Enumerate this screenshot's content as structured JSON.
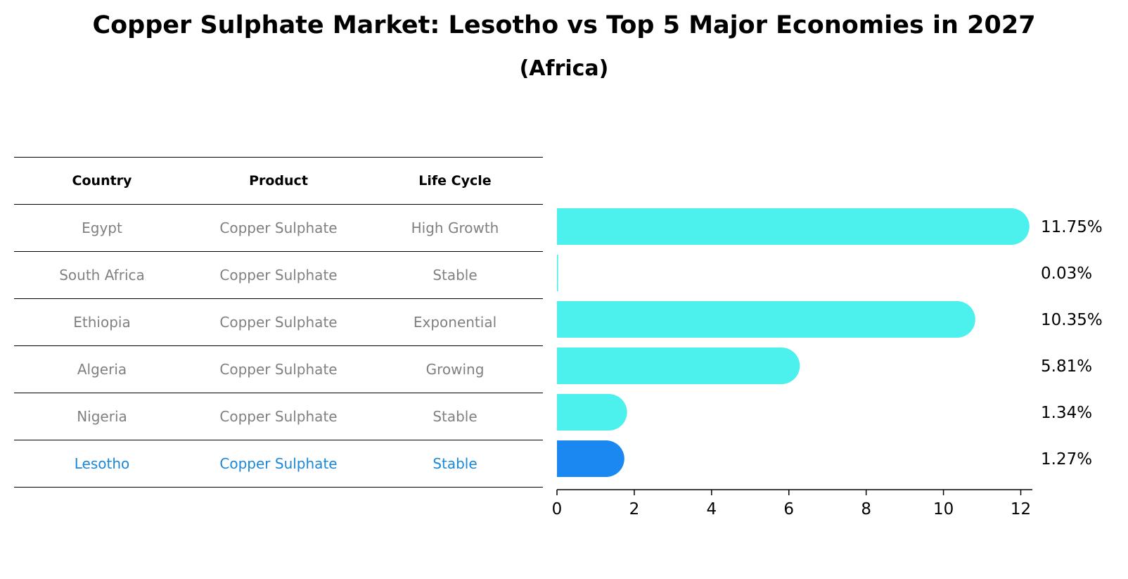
{
  "title": "Copper Sulphate Market: Lesotho vs Top 5 Major Economies in 2027",
  "subtitle": "(Africa)",
  "colors": {
    "bar": "#4cf0ec",
    "highlight": "#1a88f0",
    "text_muted": "#808080",
    "highlight_text": "#1a88d8"
  },
  "table": {
    "headers": [
      "Country",
      "Product",
      "Life Cycle"
    ],
    "rows": [
      {
        "country": "Egypt",
        "product": "Copper Sulphate",
        "life_cycle": "High Growth",
        "highlight": false
      },
      {
        "country": "South Africa",
        "product": "Copper Sulphate",
        "life_cycle": "Stable",
        "highlight": false
      },
      {
        "country": "Ethiopia",
        "product": "Copper Sulphate",
        "life_cycle": "Exponential",
        "highlight": false
      },
      {
        "country": "Algeria",
        "product": "Copper Sulphate",
        "life_cycle": "Growing",
        "highlight": false
      },
      {
        "country": "Nigeria",
        "product": "Copper Sulphate",
        "life_cycle": "Stable",
        "highlight": false
      },
      {
        "country": "Lesotho",
        "product": "Copper Sulphate",
        "life_cycle": "Stable",
        "highlight": true
      }
    ]
  },
  "chart_data": {
    "type": "bar",
    "orientation": "horizontal",
    "categories": [
      "Egypt",
      "South Africa",
      "Ethiopia",
      "Algeria",
      "Nigeria",
      "Lesotho"
    ],
    "values": [
      11.75,
      0.03,
      10.35,
      5.81,
      1.34,
      1.27
    ],
    "value_labels": [
      "11.75%",
      "0.03%",
      "10.35%",
      "5.81%",
      "1.34%",
      "1.27%"
    ],
    "highlight_index": 5,
    "xlim": [
      0,
      12.3
    ],
    "xticks": [
      0,
      2,
      4,
      6,
      8,
      10,
      12
    ],
    "grid": false
  }
}
